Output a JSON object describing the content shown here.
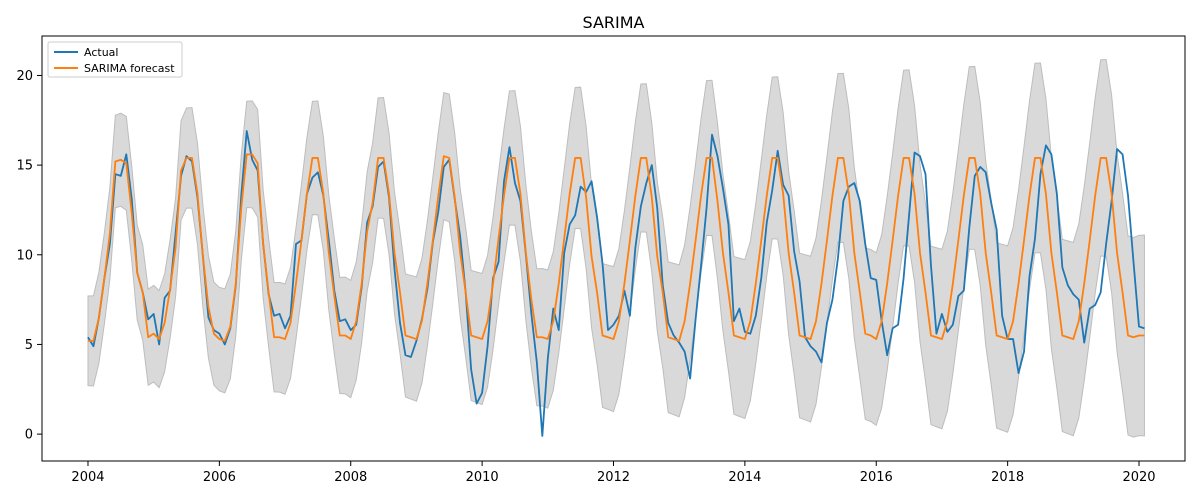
{
  "chart_data": {
    "type": "line",
    "title": "SARIMA",
    "xlabel": "",
    "ylabel": "",
    "xlim": [
      2003.3,
      2020.7
    ],
    "ylim": [
      -1.5,
      22.2
    ],
    "x_ticks": [
      2004,
      2006,
      2008,
      2010,
      2012,
      2014,
      2016,
      2018,
      2020
    ],
    "x_tick_labels": [
      "2004",
      "2006",
      "2008",
      "2010",
      "2012",
      "2014",
      "2016",
      "2018",
      "2020"
    ],
    "y_ticks": [
      0,
      5,
      10,
      15,
      20
    ],
    "y_tick_labels": [
      "0",
      "5",
      "10",
      "15",
      "20"
    ],
    "grid": false,
    "legend_position": "top-left",
    "x_start": 2004.0,
    "x_step": 0.08333,
    "series": [
      {
        "name": "Actual",
        "color": "#1f77b4",
        "values": [
          5.4,
          4.9,
          6.5,
          8.7,
          10.6,
          14.5,
          14.4,
          15.6,
          13.1,
          9.0,
          7.9,
          6.4,
          6.7,
          5.0,
          7.6,
          8.0,
          11.2,
          14.4,
          15.5,
          15.2,
          13.2,
          9.9,
          6.5,
          5.8,
          5.6,
          5.0,
          5.9,
          8.3,
          13.3,
          16.9,
          15.3,
          14.7,
          10.6,
          7.8,
          6.6,
          6.7,
          5.9,
          6.6,
          10.6,
          10.8,
          13.4,
          14.3,
          14.6,
          13.3,
          10.8,
          8.0,
          6.3,
          6.4,
          5.8,
          6.1,
          8.2,
          11.8,
          12.7,
          14.9,
          15.2,
          13.2,
          9.2,
          6.2,
          4.4,
          4.3,
          5.2,
          6.4,
          8.1,
          10.7,
          12.4,
          14.9,
          15.3,
          13.1,
          11.0,
          7.9,
          3.6,
          1.7,
          2.3,
          4.9,
          8.7,
          9.6,
          14.1,
          16.0,
          14.0,
          13.0,
          10.0,
          6.7,
          4.0,
          -0.1,
          4.2,
          7.0,
          5.8,
          10.1,
          11.7,
          12.2,
          13.8,
          13.5,
          14.1,
          12.1,
          9.5,
          5.8,
          6.1,
          6.6,
          8.0,
          6.6,
          10.4,
          12.7,
          14.0,
          15.0,
          12.6,
          8.3,
          6.2,
          5.5,
          5.1,
          4.6,
          3.1,
          6.4,
          9.4,
          12.6,
          16.7,
          15.5,
          13.7,
          11.7,
          6.3,
          7.0,
          5.7,
          5.6,
          6.6,
          8.7,
          11.8,
          13.6,
          15.8,
          13.9,
          13.3,
          10.2,
          8.5,
          5.4,
          4.9,
          4.6,
          4.0,
          6.2,
          7.5,
          9.8,
          13.0,
          13.8,
          14.0,
          13.0,
          10.6,
          8.7,
          8.6,
          6.3,
          4.4,
          5.9,
          6.1,
          8.7,
          12.2,
          15.7,
          15.5,
          14.5,
          9.4,
          5.6,
          6.7,
          5.7,
          6.1,
          7.7,
          8.0,
          11.5,
          14.4,
          14.9,
          14.6,
          12.9,
          11.4,
          6.6,
          5.3,
          5.3,
          3.4,
          4.6,
          8.8,
          10.9,
          14.5,
          16.1,
          15.6,
          13.4,
          9.3,
          8.3,
          7.8,
          7.5,
          5.1,
          7.0,
          7.2,
          7.9,
          10.6,
          13.0,
          15.9,
          15.6,
          13.3,
          9.6,
          6.0,
          5.9
        ]
      },
      {
        "name": "SARIMA forecast",
        "color": "#ff7f0e",
        "values": [
          5.2,
          5.2,
          6.5,
          8.7,
          11.2,
          15.2,
          15.3,
          15.1,
          12.3,
          9.0,
          7.9,
          5.4,
          5.6,
          5.3,
          6.2,
          8.1,
          10.4,
          14.7,
          15.4,
          15.4,
          13.4,
          9.9,
          7.1,
          5.6,
          5.3,
          5.2,
          6.0,
          8.4,
          12.6,
          15.6,
          15.6,
          15.1,
          10.6,
          7.9,
          5.4,
          5.4,
          5.3,
          6.2,
          8.4,
          10.8,
          13.4,
          15.4,
          15.4,
          13.4,
          10.1,
          7.7,
          5.5,
          5.5,
          5.3,
          6.3,
          8.4,
          11.3,
          12.9,
          15.4,
          15.4,
          13.4,
          10.1,
          7.9,
          5.5,
          5.4,
          5.3,
          6.3,
          8.4,
          10.8,
          13.3,
          15.5,
          15.4,
          13.2,
          10.1,
          7.9,
          5.5,
          5.4,
          5.3,
          6.3,
          8.4,
          10.9,
          13.3,
          15.4,
          15.4,
          13.4,
          10.1,
          7.5,
          5.4,
          5.4,
          5.3,
          6.3,
          8.4,
          10.9,
          13.4,
          15.4,
          15.4,
          13.2,
          9.9,
          7.9,
          5.5,
          5.4,
          5.3,
          6.3,
          8.4,
          10.8,
          13.3,
          15.4,
          15.4,
          13.2,
          9.9,
          7.9,
          5.4,
          5.3,
          5.2,
          6.3,
          8.4,
          10.8,
          13.3,
          15.4,
          15.4,
          13.0,
          10.1,
          7.9,
          5.5,
          5.4,
          5.3,
          6.3,
          8.4,
          10.8,
          13.3,
          15.4,
          15.4,
          13.4,
          10.1,
          7.9,
          5.5,
          5.4,
          5.3,
          6.3,
          8.4,
          10.8,
          13.3,
          15.4,
          15.4,
          13.4,
          10.1,
          7.9,
          5.6,
          5.5,
          5.3,
          6.3,
          8.4,
          10.8,
          13.3,
          15.4,
          15.4,
          13.4,
          10.1,
          7.9,
          5.5,
          5.4,
          5.3,
          6.3,
          8.4,
          10.8,
          13.3,
          15.4,
          15.4,
          13.4,
          10.1,
          7.9,
          5.5,
          5.4,
          5.3,
          6.3,
          8.4,
          10.8,
          13.3,
          15.4,
          15.4,
          13.4,
          10.1,
          7.9,
          5.5,
          5.4,
          5.3,
          6.3,
          8.4,
          10.8,
          13.3,
          15.4,
          15.4,
          13.4,
          10.1,
          7.9,
          5.5,
          5.4,
          5.5,
          5.5
        ]
      }
    ],
    "confidence_band": {
      "color": "#d9d9d9",
      "edge_color": "#bdbdbd",
      "half_width_start": 2.5,
      "half_width_end": 5.6
    }
  }
}
